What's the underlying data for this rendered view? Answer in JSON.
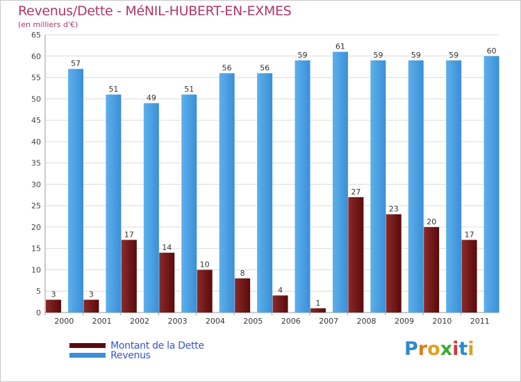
{
  "chart_data": {
    "type": "bar",
    "title": "Revenus/Dette - MéNIL-HUBERT-EN-EXMES",
    "subtitle": "(en milliers d'€)",
    "categories": [
      "2000",
      "2001",
      "2002",
      "2003",
      "2004",
      "2005",
      "2006",
      "2007",
      "2008",
      "2009",
      "2010",
      "2011"
    ],
    "series": [
      {
        "name": "Montant de la Dette",
        "color": "#7a1e1e",
        "values": [
          3,
          3,
          17,
          14,
          10,
          8,
          4,
          1,
          27,
          23,
          20,
          17
        ]
      },
      {
        "name": "Revenus",
        "color": "#4a9ee0",
        "values": [
          57,
          51,
          49,
          51,
          56,
          56,
          59,
          61,
          59,
          59,
          59,
          60
        ]
      }
    ],
    "ylim": [
      0,
      65
    ],
    "yticks": [
      0,
      5,
      10,
      15,
      20,
      25,
      30,
      35,
      40,
      45,
      50,
      55,
      60,
      65
    ],
    "grid": true,
    "legend_position": "bottom-left"
  },
  "legend": {
    "items": [
      {
        "label": "Montant de la Dette",
        "color": "#5a0a0a"
      },
      {
        "label": "Revenus",
        "color": "#3a8fd8"
      }
    ]
  },
  "logo": {
    "letters": [
      "P",
      "r",
      "o",
      "x",
      "i",
      "t",
      "i"
    ],
    "colors": [
      "#2a8ad0",
      "#e07a1a",
      "#e0a020",
      "#3aaa3a",
      "#d03a3a",
      "#2a8ad0",
      "#e0a020"
    ]
  }
}
